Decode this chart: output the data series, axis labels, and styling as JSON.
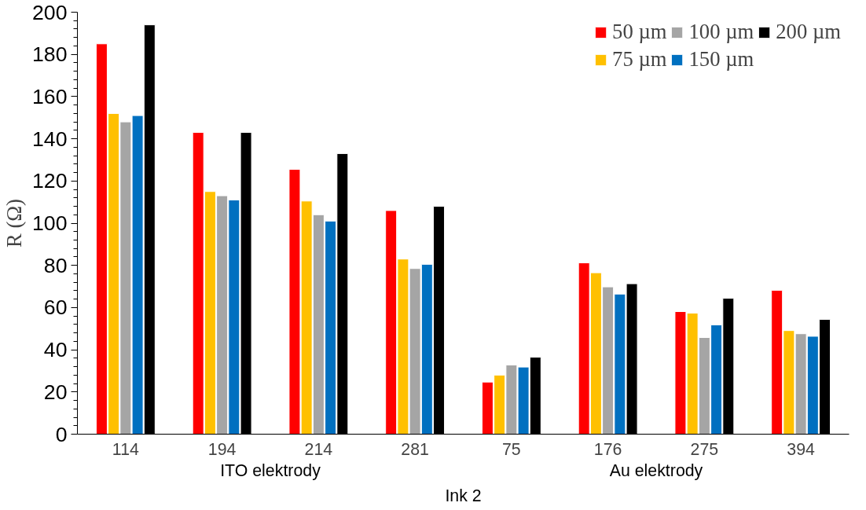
{
  "chart_data": {
    "type": "bar",
    "ylabel": "R (Ω)",
    "xlabel": "Ink 2",
    "annotations": [
      "ITO elektrody",
      "Au elektrody"
    ],
    "categories": [
      "114",
      "194",
      "214",
      "281",
      "75",
      "176",
      "275",
      "394"
    ],
    "series": [
      {
        "name": "50 µm",
        "color": "#ff0000",
        "values": [
          185,
          143,
          125.5,
          106,
          24.7,
          81.2,
          58.1,
          68.2
        ]
      },
      {
        "name": "75 µm",
        "color": "#ffc000",
        "values": [
          152,
          115,
          110.5,
          83,
          28,
          76.5,
          57.4,
          49.1
        ]
      },
      {
        "name": "100 µm",
        "color": "#a5a5a5",
        "values": [
          148,
          113,
          104,
          78.5,
          32.8,
          69.8,
          45.8,
          47.6
        ]
      },
      {
        "name": "150 µm",
        "color": "#0070c0",
        "values": [
          151,
          111,
          101,
          80.5,
          31.8,
          66.4,
          51.8,
          46.4
        ]
      },
      {
        "name": "200 µm",
        "color": "#000000",
        "values": [
          194,
          143,
          133,
          108,
          36.5,
          71.3,
          64.4,
          54.4
        ]
      }
    ],
    "ylim": [
      0,
      200
    ],
    "yticks": [
      0,
      20,
      40,
      60,
      80,
      100,
      120,
      140,
      160,
      180,
      200
    ],
    "grid": false,
    "legend": "top right"
  }
}
